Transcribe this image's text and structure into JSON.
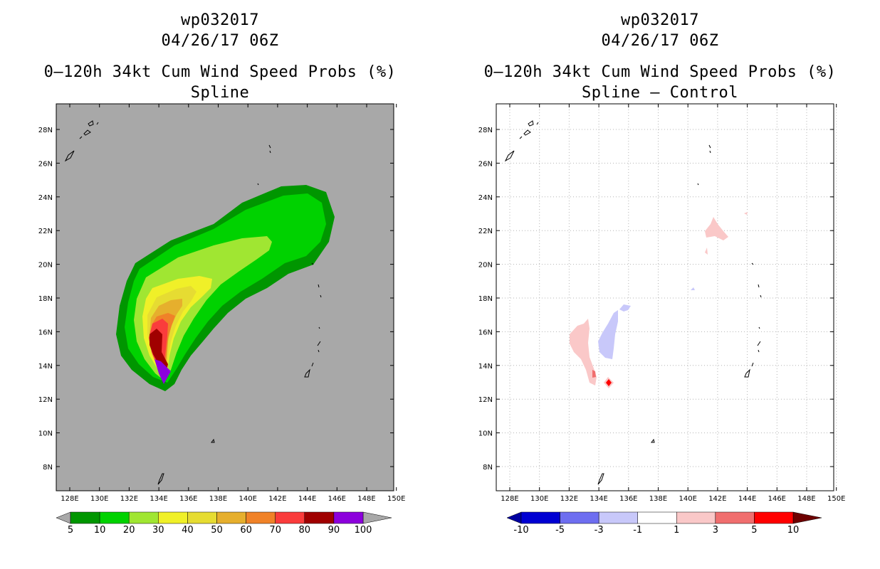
{
  "panels": [
    {
      "title_lines": [
        "wp032017",
        "04/26/17 06Z",
        "0–120h 34kt Cum Wind Speed Probs (%)",
        "Spline"
      ],
      "background": "#a8a8a8",
      "lon_labels": [
        "128E",
        "130E",
        "132E",
        "134E",
        "136E",
        "138E",
        "140E",
        "142E",
        "144E",
        "146E",
        "148E",
        "150E"
      ],
      "lat_labels": [
        "8N",
        "10N",
        "12N",
        "14N",
        "16N",
        "18N",
        "20N",
        "22N",
        "24N",
        "26N",
        "28N"
      ],
      "colorbar": {
        "colors": [
          "#009600",
          "#00d200",
          "#a0e632",
          "#f0f028",
          "#e6dc32",
          "#e6af2d",
          "#f08228",
          "#fa3c3c",
          "#a00000",
          "#8c00dc"
        ],
        "under_color": "#a8a8a8",
        "over_color": "#a8a8a8",
        "labels": [
          "5",
          "10",
          "20",
          "30",
          "40",
          "50",
          "60",
          "70",
          "80",
          "90",
          "100"
        ]
      }
    },
    {
      "title_lines": [
        "wp032017",
        "04/26/17 06Z",
        "0–120h 34kt Cum Wind Speed Probs (%)",
        "Spline – Control"
      ],
      "background": "#ffffff",
      "lon_labels": [
        "128E",
        "130E",
        "132E",
        "134E",
        "136E",
        "138E",
        "140E",
        "142E",
        "144E",
        "146E",
        "148E",
        "150E"
      ],
      "lat_labels": [
        "8N",
        "10N",
        "12N",
        "14N",
        "16N",
        "18N",
        "20N",
        "22N",
        "24N",
        "26N",
        "28N"
      ],
      "colorbar": {
        "colors": [
          "#0000d2",
          "#6e6ef0",
          "#c8c8fa",
          "#ffffff",
          "#fac8c8",
          "#f06e6e",
          "#ff0000"
        ],
        "under_color": "#0000a0",
        "over_color": "#6e0000",
        "labels": [
          "-10",
          "-5",
          "-3",
          "-1",
          "1",
          "3",
          "5",
          "10"
        ]
      }
    }
  ]
}
